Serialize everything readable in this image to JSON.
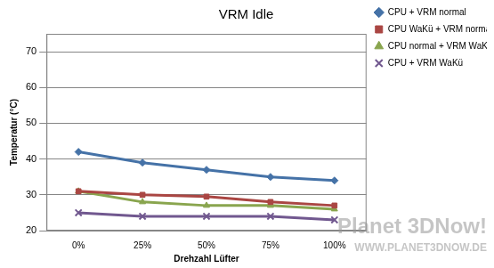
{
  "chart_data": {
    "type": "line",
    "title": "VRM Idle",
    "x_label": "Drehzahl Lüfter",
    "y_label": "Temperatur (°C)",
    "categories": [
      "0%",
      "25%",
      "50%",
      "75%",
      "100%"
    ],
    "series": [
      {
        "name": "CPU + VRM normal",
        "color": "#4572a7",
        "marker": "diamond",
        "values": [
          42,
          39,
          37,
          35,
          34
        ]
      },
      {
        "name": "CPU WaKü + VRM normal",
        "color": "#aa4643",
        "marker": "square",
        "values": [
          31,
          30,
          29.5,
          28,
          27
        ]
      },
      {
        "name": "CPU normal + VRM WaKü",
        "color": "#89a54e",
        "marker": "triangle",
        "values": [
          31,
          28,
          27,
          27,
          26
        ]
      },
      {
        "name": "CPU + VRM WaKü",
        "color": "#71588f",
        "marker": "x",
        "values": [
          25,
          24,
          24,
          24,
          23
        ]
      }
    ],
    "ylim": [
      20,
      75
    ],
    "yticks": [
      20,
      30,
      40,
      50,
      60,
      70
    ],
    "grid": true,
    "legend": "right",
    "annotations": [
      "Planet 3DNow!",
      "WWW.PLANET3DNOW.DE"
    ]
  }
}
